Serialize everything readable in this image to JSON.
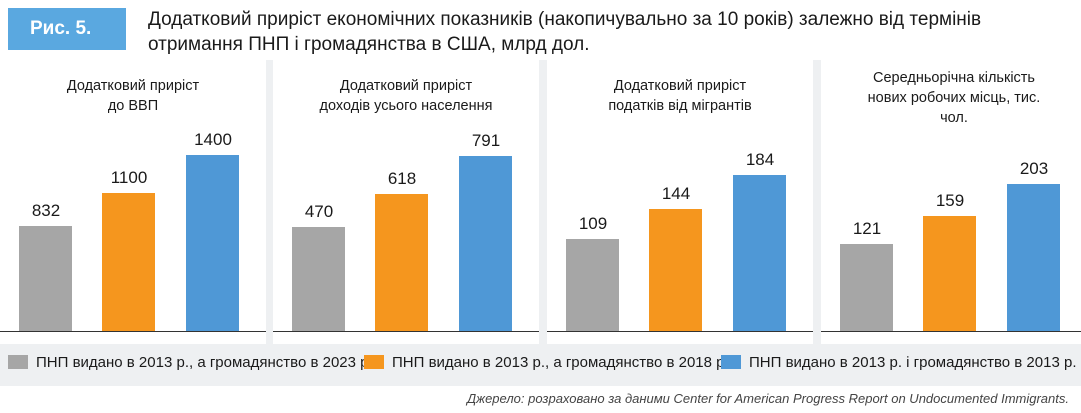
{
  "figure": {
    "tag": "Рис. 5.",
    "title": "Додатковий приріст економічних показників (накопичувально за 10 років) залежно від термінів отримання ПНП і громадянства в США, млрд дол."
  },
  "colors": {
    "gray": "#a6a6a6",
    "orange": "#f5961e",
    "blue": "#4f98d6",
    "tag": "#5aa8e0"
  },
  "legend": [
    {
      "label": "ПНП видано в 2013 р., а громадянство в 2023 р.",
      "color": "#a6a6a6"
    },
    {
      "label": "ПНП видано в 2013 р., а громадянство в 2018 р.",
      "color": "#f5961e"
    },
    {
      "label": "ПНП видано в 2013 р. і громадянство в 2013 р.",
      "color": "#4f98d6"
    }
  ],
  "source": "Джерело: розраховано за даними Center for American Progress Report on Undocumented Immigrants.",
  "chart_data": [
    {
      "type": "bar",
      "title": "Додатковий приріст до ВВП",
      "title_lines": [
        "Додатковий приріст",
        "до ВВП"
      ],
      "categories": [
        "ПНП видано в 2013 р., а громадянство в 2023 р.",
        "ПНП видано в 2013 р., а громадянство в 2018 р.",
        "ПНП видано в 2013 р. і громадянство в 2013 р."
      ],
      "values": [
        832,
        1100,
        1400
      ],
      "labels": [
        "832",
        "1100",
        "1400"
      ],
      "ylim": [
        0,
        1550
      ]
    },
    {
      "type": "bar",
      "title": "Додатковий приріст доходів усього населення",
      "title_lines": [
        "Додатковий приріст",
        "доходів усього населення"
      ],
      "categories": [
        "ПНП видано в 2013 р., а громадянство в 2023 р.",
        "ПНП видано в 2013 р., а громадянство в 2018 р.",
        "ПНП видано в 2013 р. і громадянство в 2013 р."
      ],
      "values": [
        470,
        618,
        791
      ],
      "labels": [
        "470",
        "618",
        "791"
      ],
      "ylim": [
        0,
        880
      ]
    },
    {
      "type": "bar",
      "title": "Додатковий приріст податків від мігрантів",
      "title_lines": [
        "Додатковий приріст",
        "податків від мігрантів"
      ],
      "categories": [
        "ПНП видано в 2013 р., а громадянство в 2023 р.",
        "ПНП видано в 2013 р., а громадянство в 2018 р.",
        "ПНП видано в 2013 р. і громадянство в 2013 р."
      ],
      "values": [
        109,
        144,
        184
      ],
      "labels": [
        "109",
        "144",
        "184"
      ],
      "ylim": [
        0,
        230
      ]
    },
    {
      "type": "bar",
      "title": "Середньорічна кількість нових робочих місць, тис. чол.",
      "title_lines": [
        "Середньорічна кількість",
        "нових робочих місць, тис.",
        "чол."
      ],
      "categories": [
        "ПНП видано в 2013 р., а громадянство в 2023 р.",
        "ПНП видано в 2013 р., а громадянство в 2018 р.",
        "ПНП видано в 2013 р. і громадянство в 2013 р."
      ],
      "values": [
        121,
        159,
        203
      ],
      "labels": [
        "121",
        "159",
        "203"
      ],
      "ylim": [
        0,
        270
      ]
    }
  ]
}
